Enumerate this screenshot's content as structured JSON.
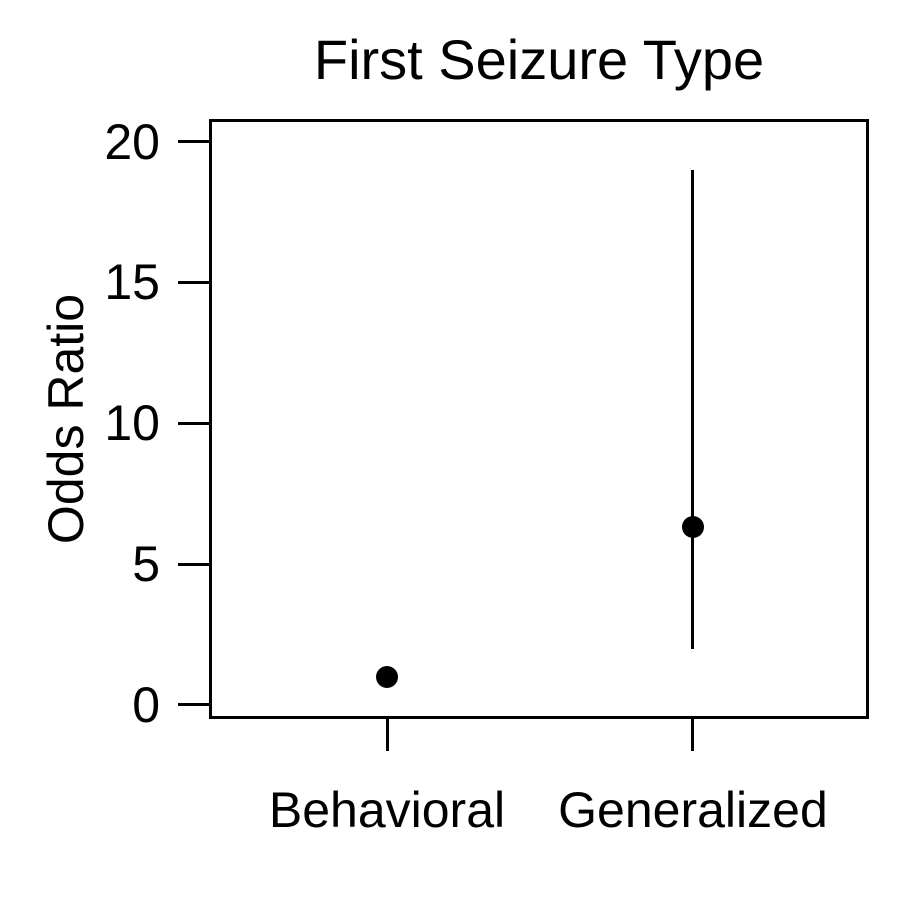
{
  "chart_data": {
    "type": "scatter",
    "title": "First Seizure Type",
    "xlabel": "",
    "ylabel": "Odds Ratio",
    "categories": [
      "Behavioral",
      "Generalized"
    ],
    "series": [
      {
        "name": "Odds Ratio",
        "values": [
          1.0,
          6.3
        ]
      }
    ],
    "error_bars": [
      {
        "category": "Behavioral",
        "low": null,
        "high": null
      },
      {
        "category": "Generalized",
        "low": 2.0,
        "high": 19.0
      }
    ],
    "yticks": [
      0,
      5,
      10,
      15,
      20
    ],
    "ylim": [
      -0.5,
      20.8
    ],
    "grid": false,
    "legend": "none",
    "point_color": "#000000",
    "axis_color": "#000000",
    "background": "#ffffff"
  }
}
